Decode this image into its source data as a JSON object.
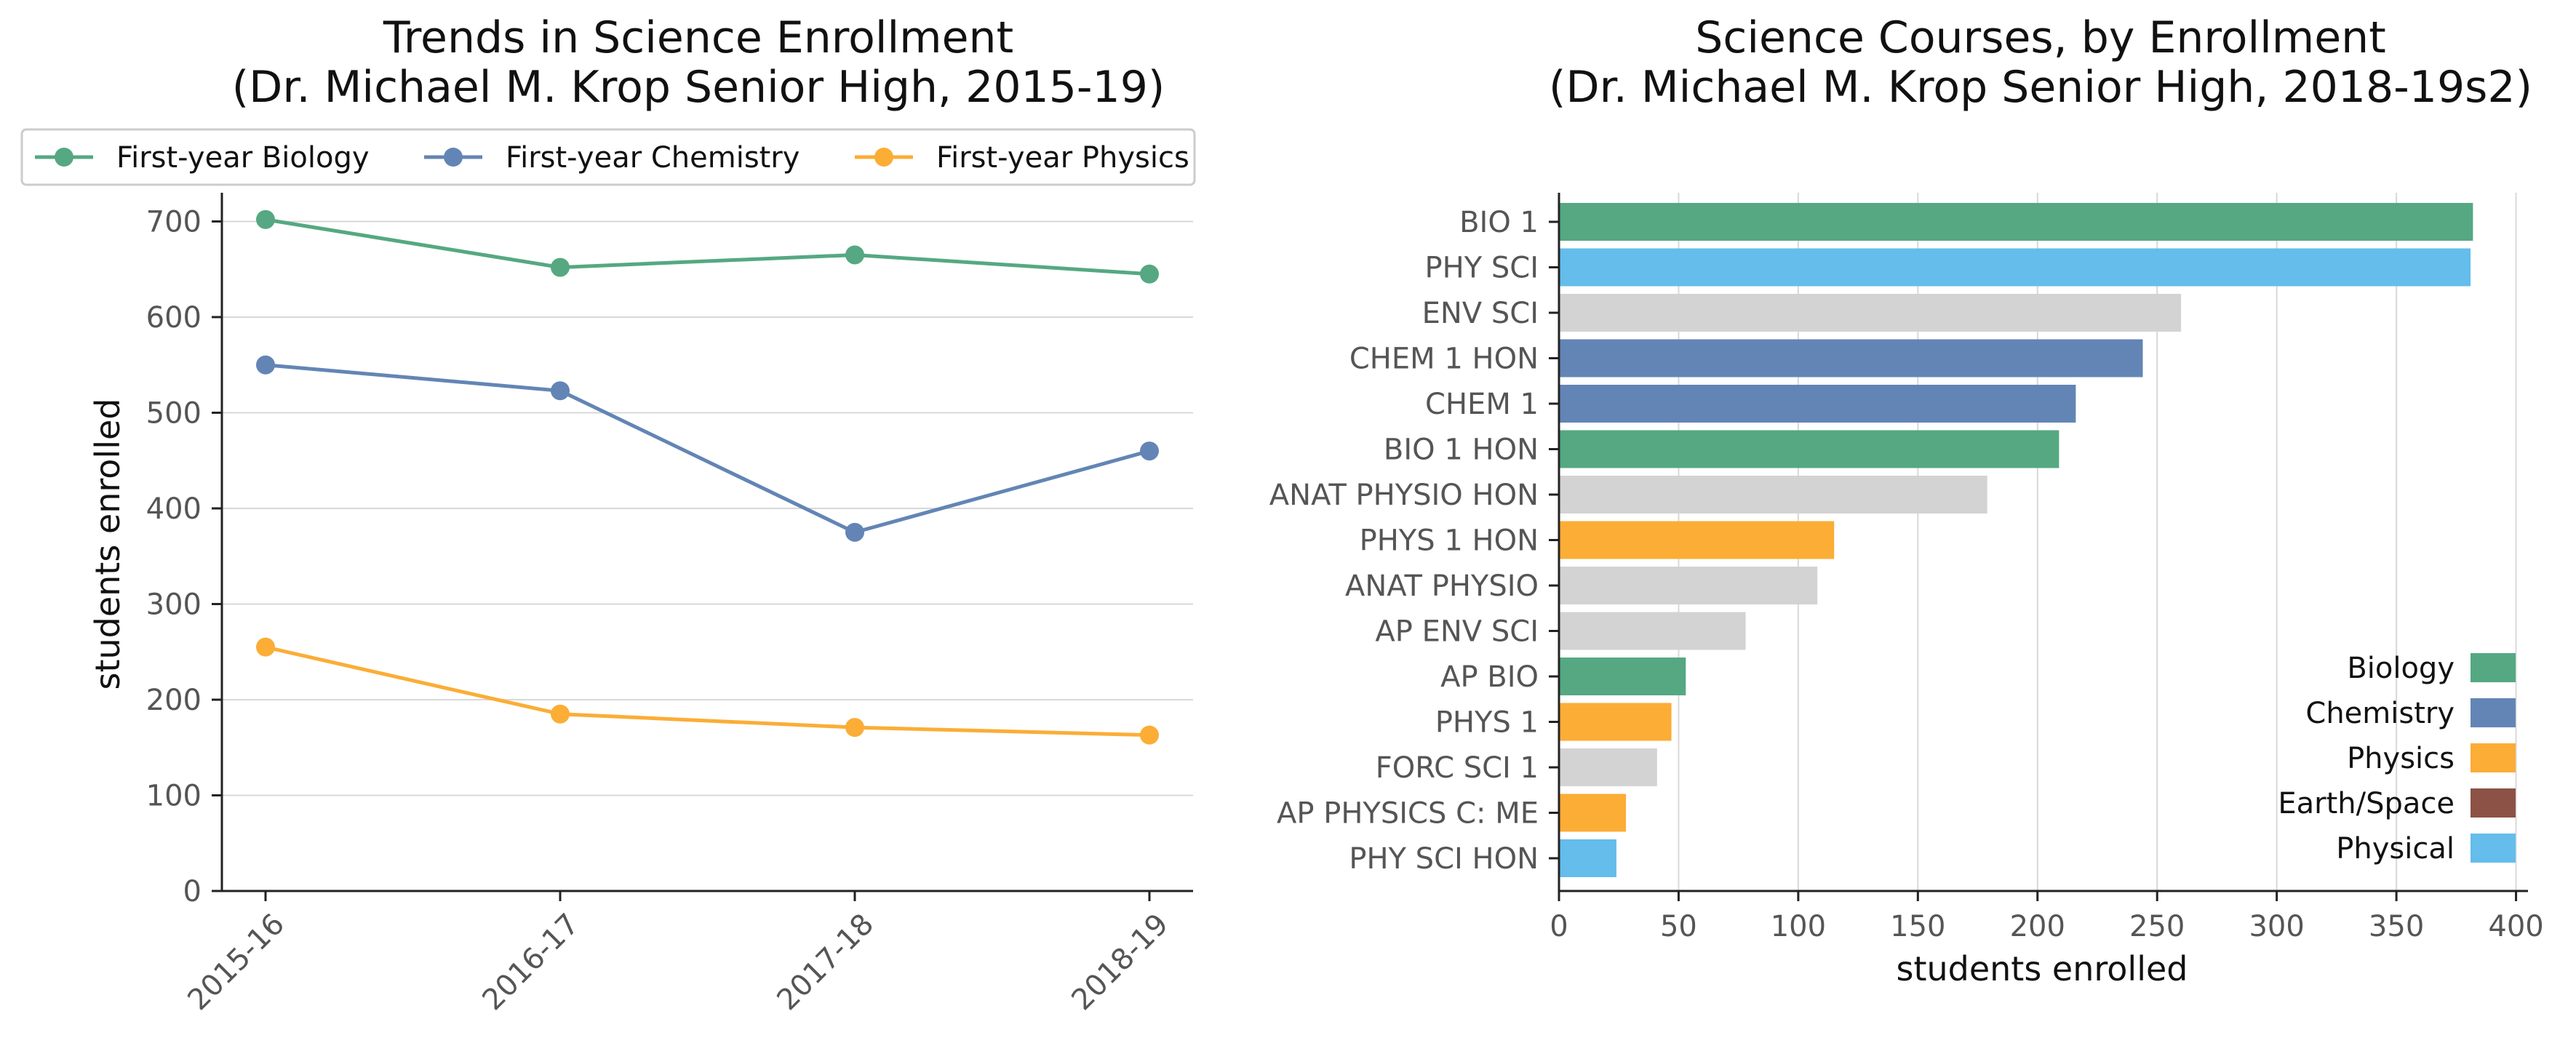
{
  "colors": {
    "biology": "#55a882",
    "chemistry": "#6385b5",
    "physics": "#fbad36",
    "earth_space": "#8c5246",
    "physical": "#64bdeb",
    "other": "#d3d3d3"
  },
  "chart_data": [
    {
      "type": "line",
      "title_line1": "Trends in Science Enrollment",
      "title_line2": "(Dr. Michael M. Krop Senior High, 2015-19)",
      "xlabel": "",
      "ylabel": "students enrolled",
      "categories": [
        "2015-16",
        "2016-17",
        "2017-18",
        "2018-19"
      ],
      "ylim": [
        0,
        730
      ],
      "yticks": [
        0,
        100,
        200,
        300,
        400,
        500,
        600,
        700
      ],
      "grid": "horizontal",
      "legend_position": "top",
      "series": [
        {
          "name": "First-year Biology",
          "color": "#55a882",
          "values": [
            702,
            652,
            665,
            645
          ]
        },
        {
          "name": "First-year Chemistry",
          "color": "#6385b5",
          "values": [
            550,
            523,
            375,
            460
          ]
        },
        {
          "name": "First-year Physics",
          "color": "#fbad36",
          "values": [
            255,
            185,
            171,
            163
          ]
        }
      ]
    },
    {
      "type": "bar",
      "orientation": "horizontal",
      "title_line1": "Science Courses, by Enrollment",
      "title_line2": "(Dr. Michael M. Krop Senior High, 2018-19s2)",
      "xlabel": "students enrolled",
      "ylabel": "",
      "xlim": [
        0,
        405
      ],
      "xticks": [
        0,
        50,
        100,
        150,
        200,
        250,
        300,
        350,
        400
      ],
      "grid": "vertical",
      "legend_position": "lower-right",
      "legend": [
        {
          "label": "Biology",
          "color": "#55a882"
        },
        {
          "label": "Chemistry",
          "color": "#6385b5"
        },
        {
          "label": "Physics",
          "color": "#fbad36"
        },
        {
          "label": "Earth/Space",
          "color": "#8c5246"
        },
        {
          "label": "Physical",
          "color": "#64bdeb"
        }
      ],
      "bars": [
        {
          "label": "BIO 1",
          "value": 382,
          "color": "#55a882"
        },
        {
          "label": "PHY SCI",
          "value": 381,
          "color": "#64bdeb"
        },
        {
          "label": "ENV SCI",
          "value": 260,
          "color": "#d3d3d3"
        },
        {
          "label": "CHEM 1 HON",
          "value": 244,
          "color": "#6385b5"
        },
        {
          "label": "CHEM 1",
          "value": 216,
          "color": "#6385b5"
        },
        {
          "label": "BIO 1 HON",
          "value": 209,
          "color": "#55a882"
        },
        {
          "label": "ANAT PHYSIO HON",
          "value": 179,
          "color": "#d3d3d3"
        },
        {
          "label": "PHYS 1 HON",
          "value": 115,
          "color": "#fbad36"
        },
        {
          "label": "ANAT PHYSIO",
          "value": 108,
          "color": "#d3d3d3"
        },
        {
          "label": "AP ENV SCI",
          "value": 78,
          "color": "#d3d3d3"
        },
        {
          "label": "AP BIO",
          "value": 53,
          "color": "#55a882"
        },
        {
          "label": "PHYS 1",
          "value": 47,
          "color": "#fbad36"
        },
        {
          "label": "FORC SCI 1",
          "value": 41,
          "color": "#d3d3d3"
        },
        {
          "label": "AP PHYSICS C: ME",
          "value": 28,
          "color": "#fbad36"
        },
        {
          "label": "PHY SCI HON",
          "value": 24,
          "color": "#64bdeb"
        }
      ]
    }
  ]
}
